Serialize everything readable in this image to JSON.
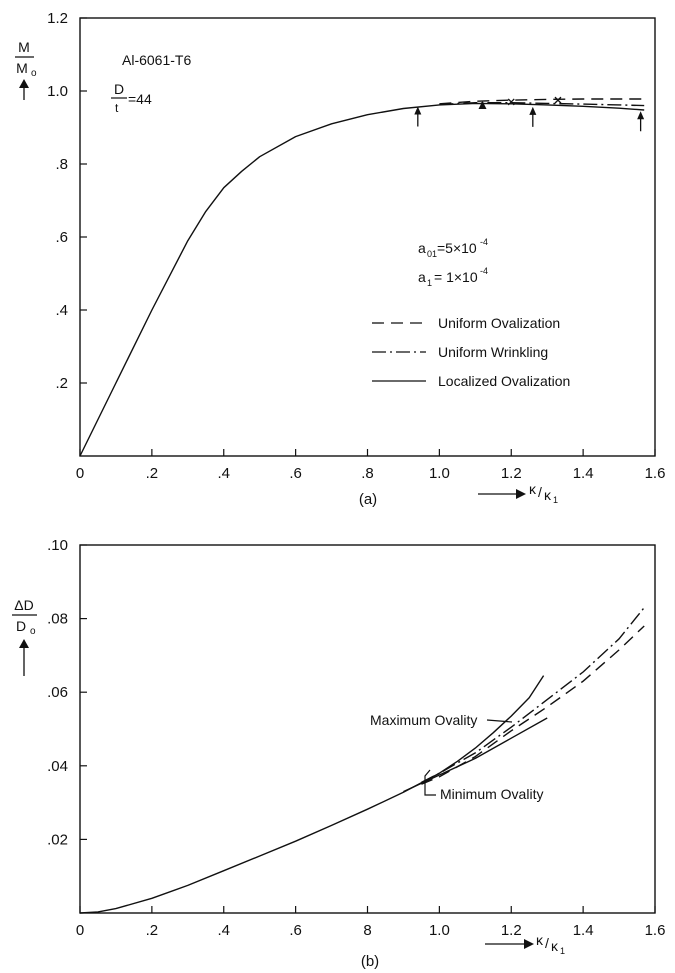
{
  "chart_data": [
    {
      "type": "line",
      "caption": "(a)",
      "ylabel_num": "M",
      "ylabel_den": "M",
      "ylabel_den_sub": "o",
      "xlabel_num": "κ",
      "xlabel_den": "κ",
      "xlabel_den_sub": "1",
      "xlim": [
        0,
        1.6
      ],
      "ylim": [
        0,
        1.2
      ],
      "xticks": [
        "0",
        ".2",
        ".4",
        ".6",
        ".8",
        "1.0",
        "1.2",
        "1.4",
        "1.6"
      ],
      "yticks": [
        ".2",
        ".4",
        ".6",
        ".8",
        "1.0",
        "1.2"
      ],
      "material": "Al-6061-T6",
      "dt_num": "D",
      "dt_den": "t",
      "dt_value": "=44",
      "param1_sym": "a",
      "param1_sub": "01",
      "param1_val": "=5×10",
      "param1_exp": "-4",
      "param2_sym": "a",
      "param2_sub": "1",
      "param2_val": "= 1×10",
      "param2_exp": "-4",
      "series": [
        {
          "name": "Uniform Ovalization",
          "style": "dashed",
          "x": [
            1.0,
            1.1,
            1.2,
            1.3,
            1.4,
            1.5,
            1.57
          ],
          "y": [
            0.965,
            0.972,
            0.975,
            0.977,
            0.978,
            0.978,
            0.978
          ]
        },
        {
          "name": "Uniform Wrinkling",
          "style": "dashdot",
          "x": [
            1.0,
            1.1,
            1.2,
            1.3,
            1.4,
            1.5,
            1.57
          ],
          "y": [
            0.963,
            0.968,
            0.968,
            0.966,
            0.964,
            0.962,
            0.96
          ]
        },
        {
          "name": "Localized Ovalization",
          "style": "solid",
          "x": [
            0.0,
            0.1,
            0.2,
            0.3,
            0.35,
            0.4,
            0.45,
            0.5,
            0.6,
            0.7,
            0.8,
            0.9,
            1.0,
            1.1,
            1.2,
            1.3,
            1.4,
            1.5,
            1.57
          ],
          "y": [
            0.0,
            0.2,
            0.4,
            0.59,
            0.67,
            0.735,
            0.78,
            0.82,
            0.875,
            0.91,
            0.935,
            0.952,
            0.962,
            0.966,
            0.965,
            0.962,
            0.958,
            0.953,
            0.948
          ]
        }
      ],
      "markers": [
        {
          "kind": "arrow",
          "x": 0.94,
          "y": 0.963
        },
        {
          "kind": "triangle",
          "x": 1.12,
          "y": 0.967
        },
        {
          "kind": "cross",
          "x": 1.2,
          "y": 0.97
        },
        {
          "kind": "arrow",
          "x": 1.26,
          "y": 0.962
        },
        {
          "kind": "cross",
          "x": 1.33,
          "y": 0.975
        },
        {
          "kind": "arrow",
          "x": 1.56,
          "y": 0.95
        }
      ]
    },
    {
      "type": "line",
      "caption": "(b)",
      "ylabel_num": "ΔD",
      "ylabel_den": "D",
      "ylabel_den_sub": "o",
      "xlabel_num": "κ",
      "xlabel_den": "κ",
      "xlabel_den_sub": "1",
      "xlim": [
        0,
        1.6
      ],
      "ylim": [
        0,
        0.1
      ],
      "xticks": [
        "0",
        ".2",
        ".4",
        ".6",
        ".8",
        "1.0",
        "1.2",
        "1.4",
        "1.6"
      ],
      "yticks": [
        ".02",
        ".04",
        ".06",
        ".08",
        ".10"
      ],
      "xtick_labels_bottom": [
        "0",
        ".2",
        ".4",
        ".6",
        "8",
        "1.0",
        "1.2",
        "1.4",
        "1.6"
      ],
      "annotations": [
        "Maximum Ovality",
        "Minimum Ovality"
      ],
      "series": [
        {
          "style": "solid",
          "x": [
            0.0,
            0.05,
            0.1,
            0.2,
            0.3,
            0.4,
            0.5,
            0.6,
            0.7,
            0.8,
            0.9,
            1.0,
            1.05,
            1.1,
            1.15,
            1.2,
            1.25,
            1.29
          ],
          "y": [
            0.0,
            0.0003,
            0.0012,
            0.004,
            0.0075,
            0.0115,
            0.0155,
            0.0195,
            0.0238,
            0.0282,
            0.0328,
            0.038,
            0.0412,
            0.0448,
            0.049,
            0.0535,
            0.0585,
            0.0645
          ]
        },
        {
          "style": "solid",
          "x": [
            0.9,
            1.0,
            1.1,
            1.2,
            1.3
          ],
          "y": [
            0.033,
            0.0375,
            0.042,
            0.0475,
            0.053
          ]
        },
        {
          "style": "dashdot",
          "x": [
            0.95,
            1.0,
            1.1,
            1.2,
            1.3,
            1.4,
            1.5,
            1.57
          ],
          "y": [
            0.0355,
            0.038,
            0.0435,
            0.0505,
            0.058,
            0.0655,
            0.0745,
            0.083
          ]
        },
        {
          "style": "dashed",
          "x": [
            0.95,
            1.0,
            1.1,
            1.2,
            1.3,
            1.4,
            1.5,
            1.57
          ],
          "y": [
            0.035,
            0.037,
            0.0425,
            0.0495,
            0.056,
            0.063,
            0.0715,
            0.078
          ]
        }
      ]
    }
  ]
}
